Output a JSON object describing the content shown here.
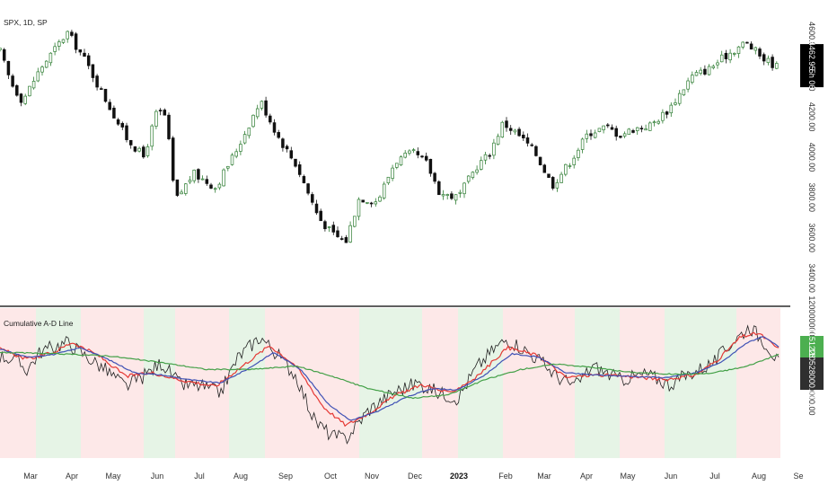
{
  "chart_data": [
    {
      "type": "candlestick",
      "title": "SPX, 1D, SP",
      "ylim": [
        3300,
        4780
      ],
      "y_ticks": [
        "4600.00",
        "4400.00",
        "4200.00",
        "4000.00",
        "3800.00",
        "3600.00",
        "3400.00"
      ],
      "y_tick_values": [
        4600,
        4400,
        4200,
        4000,
        3800,
        3600,
        3400
      ],
      "last_price_label": "4462.95",
      "last_price_sub_label": "5h 06",
      "last_price": 4462.95,
      "colors": {
        "up": "#2e7d32",
        "down": "#111111",
        "tag_bg": "#000000"
      },
      "close_keypoints": [
        [
          0,
          4525
        ],
        [
          12,
          4370
        ],
        [
          25,
          4280
        ],
        [
          45,
          4440
        ],
        [
          75,
          4620
        ],
        [
          95,
          4480
        ],
        [
          110,
          4350
        ],
        [
          140,
          4100
        ],
        [
          160,
          4000
        ],
        [
          175,
          4230
        ],
        [
          185,
          4200
        ],
        [
          195,
          3780
        ],
        [
          215,
          3920
        ],
        [
          240,
          3850
        ],
        [
          265,
          4050
        ],
        [
          290,
          4280
        ],
        [
          310,
          4100
        ],
        [
          330,
          3960
        ],
        [
          355,
          3700
        ],
        [
          370,
          3620
        ],
        [
          385,
          3580
        ],
        [
          400,
          3800
        ],
        [
          420,
          3780
        ],
        [
          440,
          3980
        ],
        [
          460,
          4020
        ],
        [
          475,
          3970
        ],
        [
          490,
          3820
        ],
        [
          510,
          3800
        ],
        [
          530,
          3950
        ],
        [
          545,
          4020
        ],
        [
          560,
          4170
        ],
        [
          575,
          4120
        ],
        [
          595,
          4030
        ],
        [
          615,
          3860
        ],
        [
          635,
          3980
        ],
        [
          655,
          4120
        ],
        [
          675,
          4150
        ],
        [
          690,
          4110
        ],
        [
          705,
          4140
        ],
        [
          725,
          4160
        ],
        [
          745,
          4240
        ],
        [
          770,
          4400
        ],
        [
          790,
          4440
        ],
        [
          810,
          4510
        ],
        [
          830,
          4570
        ],
        [
          850,
          4490
        ],
        [
          869,
          4440
        ]
      ]
    },
    {
      "type": "line",
      "title": "Cumulative A-D Line",
      "ylim": [
        100000000,
        122000000
      ],
      "y_ticks": [
        "120000000.00",
        "110000000.00"
      ],
      "y_tick_values": [
        120000000,
        110000000
      ],
      "value_labels": [
        "115122563.00",
        "110528000.00"
      ],
      "value_label_colors": [
        "#4caf50",
        "#2f2f2f"
      ],
      "series": [
        {
          "name": "",
          "color": "#222222",
          "keypoints": [
            [
              0,
              115
            ],
            [
              15,
              114.5
            ],
            [
              30,
              113
            ],
            [
              45,
              115.6
            ],
            [
              75,
              117
            ],
            [
              95,
              115
            ],
            [
              115,
              113.2
            ],
            [
              140,
              110.5
            ],
            [
              160,
              112
            ],
            [
              180,
              114
            ],
            [
              200,
              110.8
            ],
            [
              225,
              110.5
            ],
            [
              245,
              109.5
            ],
            [
              265,
              114.8
            ],
            [
              290,
              117.8
            ],
            [
              310,
              115
            ],
            [
              330,
              112
            ],
            [
              350,
              105.5
            ],
            [
              370,
              103.2
            ],
            [
              385,
              102.8
            ],
            [
              410,
              107
            ],
            [
              440,
              109.8
            ],
            [
              465,
              111
            ],
            [
              490,
              109.5
            ],
            [
              510,
              108.8
            ],
            [
              530,
              113.2
            ],
            [
              550,
              116
            ],
            [
              565,
              117.5
            ],
            [
              585,
              115.8
            ],
            [
              600,
              114.4
            ],
            [
              620,
              112
            ],
            [
              640,
              110.5
            ],
            [
              660,
              113.5
            ],
            [
              690,
              111.5
            ],
            [
              720,
              112.3
            ],
            [
              745,
              110.8
            ],
            [
              770,
              112.5
            ],
            [
              795,
              114
            ],
            [
              815,
              117
            ],
            [
              835,
              119.3
            ],
            [
              855,
              116.5
            ],
            [
              869,
              113.5
            ]
          ]
        },
        {
          "name": "",
          "color": "#e53935",
          "keypoints": [
            [
              0,
              116
            ],
            [
              30,
              114.5
            ],
            [
              60,
              115.5
            ],
            [
              80,
              117
            ],
            [
              110,
              115
            ],
            [
              140,
              112
            ],
            [
              170,
              112.5
            ],
            [
              200,
              111.5
            ],
            [
              240,
              110.5
            ],
            [
              270,
              113.5
            ],
            [
              300,
              116.5
            ],
            [
              330,
              113.5
            ],
            [
              360,
              107.5
            ],
            [
              385,
              104.8
            ],
            [
              410,
              106.5
            ],
            [
              440,
              109.2
            ],
            [
              470,
              110.8
            ],
            [
              500,
              109.5
            ],
            [
              530,
              111.8
            ],
            [
              565,
              116.2
            ],
            [
              600,
              115
            ],
            [
              630,
              111.8
            ],
            [
              660,
              112.2
            ],
            [
              700,
              112
            ],
            [
              740,
              111.5
            ],
            [
              775,
              112.2
            ],
            [
              800,
              114.5
            ],
            [
              825,
              117.8
            ],
            [
              845,
              118.3
            ],
            [
              869,
              115.8
            ]
          ]
        },
        {
          "name": "",
          "color": "#3f51b5",
          "keypoints": [
            [
              0,
              116
            ],
            [
              30,
              114.8
            ],
            [
              60,
              115.2
            ],
            [
              90,
              116.2
            ],
            [
              120,
              114.5
            ],
            [
              150,
              112.5
            ],
            [
              180,
              112.2
            ],
            [
              210,
              111.5
            ],
            [
              245,
              111
            ],
            [
              275,
              113
            ],
            [
              305,
              115.5
            ],
            [
              335,
              113
            ],
            [
              365,
              108
            ],
            [
              390,
              105.5
            ],
            [
              420,
              106.8
            ],
            [
              450,
              108.8
            ],
            [
              480,
              110.2
            ],
            [
              510,
              110
            ],
            [
              540,
              112.2
            ],
            [
              570,
              115.3
            ],
            [
              600,
              114.8
            ],
            [
              630,
              112.5
            ],
            [
              660,
              112.2
            ],
            [
              700,
              112
            ],
            [
              740,
              111.8
            ],
            [
              775,
              112.5
            ],
            [
              805,
              114.2
            ],
            [
              830,
              116.8
            ],
            [
              850,
              117.8
            ],
            [
              869,
              116.2
            ]
          ]
        },
        {
          "name": "",
          "color": "#43a047",
          "keypoints": [
            [
              0,
              115.5
            ],
            [
              60,
              115.3
            ],
            [
              120,
              115
            ],
            [
              180,
              114
            ],
            [
              230,
              113
            ],
            [
              280,
              113
            ],
            [
              330,
              113.5
            ],
            [
              370,
              112
            ],
            [
              410,
              110.2
            ],
            [
              460,
              108.8
            ],
            [
              500,
              109.3
            ],
            [
              540,
              111.5
            ],
            [
              580,
              113
            ],
            [
              620,
              113.8
            ],
            [
              660,
              113.3
            ],
            [
              700,
              112.6
            ],
            [
              750,
              112.3
            ],
            [
              790,
              112.4
            ],
            [
              830,
              113.4
            ],
            [
              869,
              115.3
            ]
          ]
        }
      ],
      "background_bands": [
        {
          "color": "#fde8e8",
          "ranges": [
            [
              0,
              40
            ],
            [
              90,
              160
            ],
            [
              195,
              255
            ],
            [
              295,
              400
            ],
            [
              470,
              510
            ],
            [
              560,
              640
            ],
            [
              690,
              740
            ],
            [
              820,
              869
            ]
          ]
        },
        {
          "color": "#e6f4e6",
          "ranges": [
            [
              40,
              90
            ],
            [
              160,
              195
            ],
            [
              255,
              295
            ],
            [
              400,
              470
            ],
            [
              510,
              560
            ],
            [
              640,
              690
            ],
            [
              740,
              820
            ]
          ]
        }
      ]
    }
  ],
  "x_axis": {
    "labels": [
      "Mar",
      "Apr",
      "May",
      "Jun",
      "Jul",
      "Aug",
      "Sep",
      "Oct",
      "Nov",
      "Dec",
      "2023",
      "Feb",
      "Mar",
      "Apr",
      "May",
      "Jun",
      "Jul",
      "Aug",
      "Se"
    ],
    "bold_label": "2023"
  }
}
